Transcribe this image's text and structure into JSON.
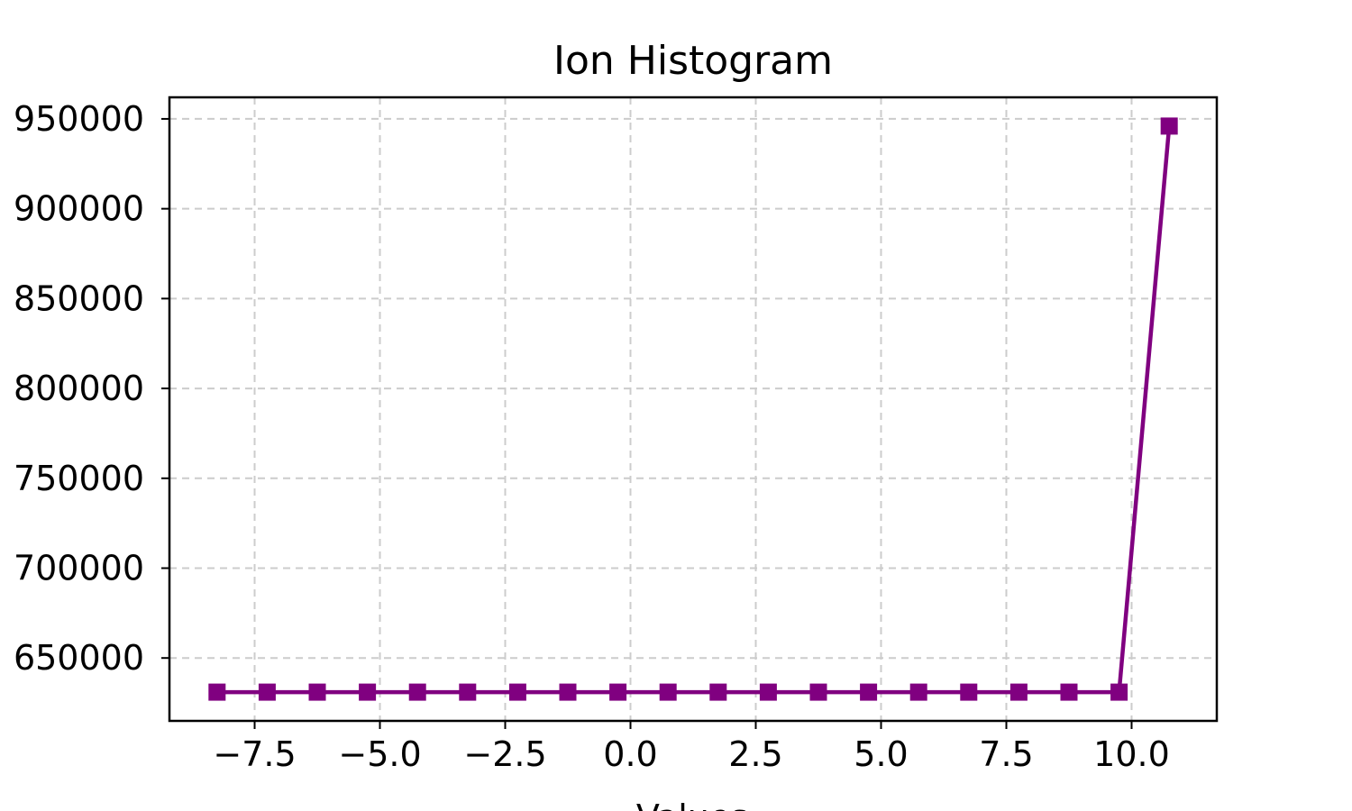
{
  "chart_data": {
    "type": "line",
    "title": "Ion Histogram",
    "xlabel": "Values",
    "ylabel": "",
    "xlim": [
      -9.2,
      11.7
    ],
    "ylim": [
      615000,
      962000
    ],
    "grid": true,
    "x_ticks": [
      -7.5,
      -5.0,
      -2.5,
      0.0,
      2.5,
      5.0,
      7.5,
      10.0
    ],
    "x_tick_labels": [
      "−7.5",
      "−5.0",
      "−2.5",
      "0.0",
      "2.5",
      "5.0",
      "7.5",
      "10.0"
    ],
    "y_ticks": [
      650000,
      700000,
      750000,
      800000,
      850000,
      900000,
      950000
    ],
    "y_tick_labels": [
      "650000",
      "700000",
      "750000",
      "800000",
      "850000",
      "900000",
      "950000"
    ],
    "series": [
      {
        "marker": "square",
        "color": "#800080",
        "x": [
          -8.25,
          -7.25,
          -6.25,
          -5.25,
          -4.25,
          -3.25,
          -2.25,
          -1.25,
          -0.25,
          0.75,
          1.75,
          2.75,
          3.75,
          4.75,
          5.75,
          6.75,
          7.75,
          8.75,
          9.75,
          10.75
        ],
        "values": [
          631000,
          631000,
          631000,
          631000,
          631000,
          631000,
          631000,
          631000,
          631000,
          631000,
          631000,
          631000,
          631000,
          631000,
          631000,
          631000,
          631000,
          631000,
          631000,
          946000
        ]
      }
    ]
  }
}
